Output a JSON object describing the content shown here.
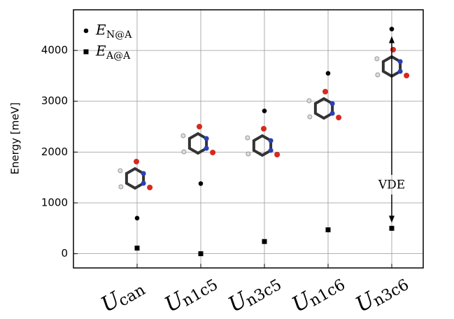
{
  "chart_data": {
    "type": "scatter",
    "y_label": "Energy [meV]",
    "category_symbol": "U",
    "categories": [
      "can",
      "n1c5",
      "n3c5",
      "n1c6",
      "n3c6"
    ],
    "legend_symbol": "E",
    "series": [
      {
        "name": "N@A",
        "color": "#000000",
        "marker": "circle",
        "values": [
          700,
          1380,
          2810,
          3550,
          4420
        ]
      },
      {
        "name": "A@A",
        "color": "#000000",
        "marker": "square",
        "values": [
          110,
          0,
          240,
          470,
          500
        ]
      }
    ],
    "annotation": "VDE",
    "ylim": [
      -280,
      4800
    ],
    "yticks": [
      0,
      1000,
      2000,
      3000,
      4000
    ],
    "grid": true
  }
}
